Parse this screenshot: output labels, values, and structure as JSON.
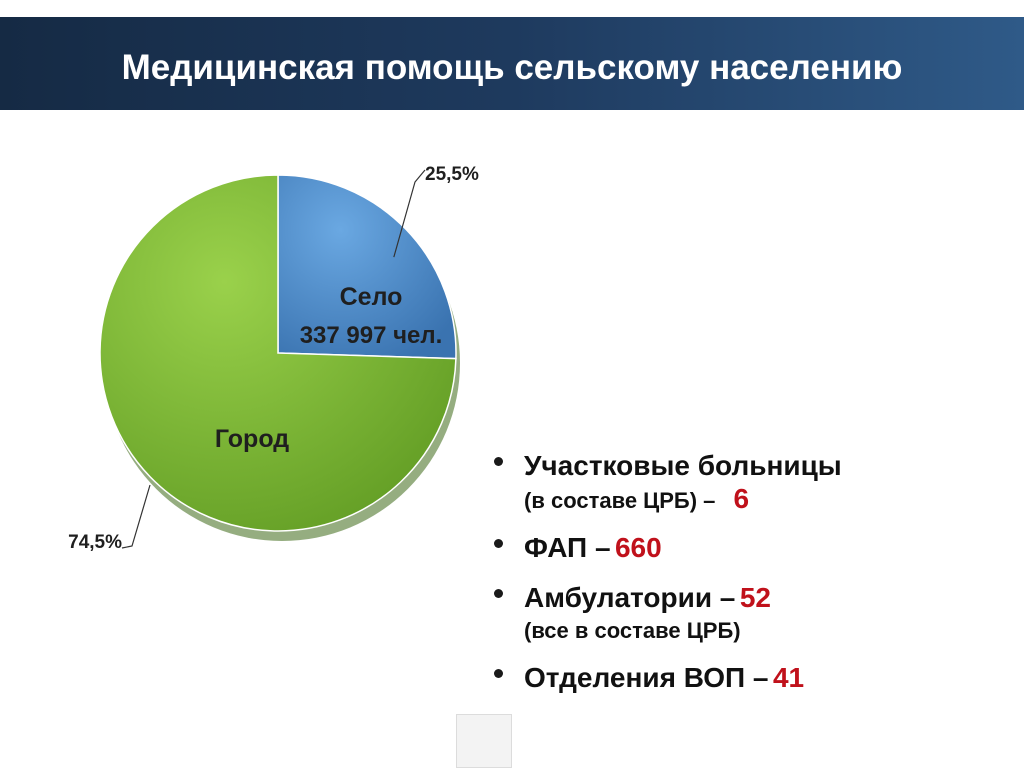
{
  "header": {
    "title": "Медицинская помощь сельскому населению"
  },
  "chart_data": {
    "type": "pie",
    "title": "",
    "slices": [
      {
        "name": "Село",
        "detail": "337 997 чел.",
        "percent_label": "25,5%",
        "value": 25.5,
        "color": "#4f8fcf"
      },
      {
        "name": "Город",
        "detail": "",
        "percent_label": "74,5%",
        "value": 74.5,
        "color": "#7bbb31"
      }
    ]
  },
  "facts": [
    {
      "label": "Участковые больницы",
      "sub_before": "(в составе ЦРБ) –",
      "value": "6",
      "sub_after": ""
    },
    {
      "label": "ФАП –",
      "value": "660"
    },
    {
      "label": "Амбулатории –",
      "value": "52",
      "note": "(все в составе ЦРБ)"
    },
    {
      "label": "Отделения ВОП –",
      "value": "41"
    }
  ]
}
